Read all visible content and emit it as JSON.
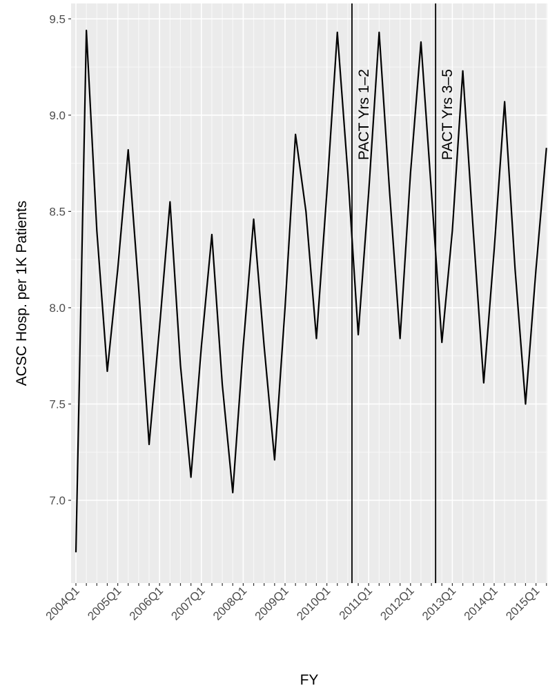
{
  "chart_data": {
    "type": "line",
    "title": "",
    "xlabel": "FY",
    "ylabel": "ACSC Hosp. per 1K Patients",
    "x_tick_labels": [
      "2004Q1",
      "2005Q1",
      "2006Q1",
      "2007Q1",
      "2008Q1",
      "2009Q1",
      "2010Q1",
      "2011Q1",
      "2012Q1",
      "2013Q1",
      "2014Q1",
      "2015Q1"
    ],
    "y_tick_labels": [
      "7.0",
      "7.5",
      "8.0",
      "8.5",
      "9.0",
      "9.5"
    ],
    "y_ticks": [
      7.0,
      7.5,
      8.0,
      8.5,
      9.0,
      9.5
    ],
    "ylim": [
      6.57,
      9.58
    ],
    "grid": true,
    "background": "#ebebeb",
    "line_color": "#000000",
    "series": [
      {
        "x": [
          "2004Q1",
          "2004Q2",
          "2004Q3",
          "2004Q4",
          "2005Q1",
          "2005Q2",
          "2005Q3",
          "2005Q4",
          "2006Q1",
          "2006Q2",
          "2006Q3",
          "2006Q4",
          "2007Q1",
          "2007Q2",
          "2007Q3",
          "2007Q4",
          "2008Q1",
          "2008Q2",
          "2008Q3",
          "2008Q4",
          "2009Q1",
          "2009Q2",
          "2009Q3",
          "2009Q4",
          "2010Q1",
          "2010Q2",
          "2010Q3",
          "2010Q4",
          "2011Q1",
          "2011Q2",
          "2011Q3",
          "2011Q4",
          "2012Q1",
          "2012Q2",
          "2012Q3",
          "2012Q4",
          "2013Q1",
          "2013Q2",
          "2013Q3",
          "2013Q4",
          "2014Q1",
          "2014Q2",
          "2014Q3",
          "2014Q4",
          "2015Q1",
          "2015Q2"
        ],
        "values": [
          6.73,
          9.44,
          8.4,
          7.67,
          8.2,
          8.82,
          8.1,
          7.29,
          7.9,
          8.55,
          7.7,
          7.12,
          7.8,
          8.38,
          7.6,
          7.04,
          7.8,
          8.46,
          7.8,
          7.21,
          8.0,
          8.9,
          8.5,
          7.84,
          8.6,
          9.43,
          8.7,
          7.86,
          8.6,
          9.43,
          8.6,
          7.84,
          8.7,
          9.38,
          8.6,
          7.82,
          8.4,
          9.23,
          8.4,
          7.61,
          8.3,
          9.07,
          8.2,
          7.5,
          8.2,
          8.83
        ]
      }
    ],
    "annotations": [
      {
        "label": "PACT Yrs 1–2",
        "x_quarter_index": 26.4
      },
      {
        "label": "PACT Yrs 3–5",
        "x_quarter_index": 34.4
      }
    ]
  }
}
